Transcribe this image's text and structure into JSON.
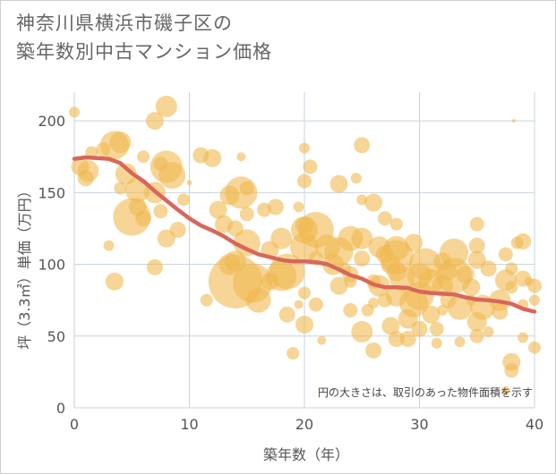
{
  "title_lines": [
    "神奈川県横浜市磯子区の",
    "築年数別中古マンション価格"
  ],
  "note": "円の大きさは、取引のあった物件面積を示す",
  "colors": {
    "bubble": "#f0b950",
    "line": "#d9665a",
    "grid": "#c9d3df",
    "axis_text": "#555555"
  },
  "chart_data": {
    "type": "scatter",
    "title": "神奈川県横浜市磯子区の築年数別中古マンション価格",
    "xlabel": "築年数（年）",
    "ylabel": "坪（3.3㎡）単価（万円）",
    "xlim": [
      0,
      40
    ],
    "ylim": [
      0,
      220
    ],
    "x_ticks": [
      0,
      10,
      20,
      30,
      40
    ],
    "y_ticks": [
      0,
      50,
      100,
      150,
      200
    ],
    "grid": true,
    "series": [
      {
        "kind": "bubble",
        "points": [
          [
            0,
            206,
            6
          ],
          [
            0.5,
            168,
            10
          ],
          [
            1,
            160,
            9
          ],
          [
            1.2,
            165,
            12
          ],
          [
            1.5,
            178,
            7
          ],
          [
            2.5,
            180,
            8
          ],
          [
            3,
            113,
            6
          ],
          [
            3.5,
            183,
            16
          ],
          [
            4,
            185,
            12
          ],
          [
            3.5,
            88,
            10
          ],
          [
            4,
            153,
            7
          ],
          [
            4.5,
            163,
            12
          ],
          [
            5,
            133,
            21
          ],
          [
            5.5,
            152,
            14
          ],
          [
            5.5,
            140,
            10
          ],
          [
            6,
            132,
            9
          ],
          [
            6,
            175,
            7
          ],
          [
            7,
            150,
            12
          ],
          [
            7,
            98,
            9
          ],
          [
            7,
            200,
            10
          ],
          [
            7.5,
            170,
            8
          ],
          [
            7.5,
            137,
            8
          ],
          [
            8,
            210,
            12
          ],
          [
            8,
            168,
            18
          ],
          [
            8,
            118,
            10
          ],
          [
            8.5,
            162,
            15
          ],
          [
            9,
            124,
            9
          ],
          [
            9.5,
            145,
            7
          ],
          [
            10,
            157,
            3
          ],
          [
            11,
            176,
            9
          ],
          [
            11.5,
            75,
            7
          ],
          [
            12,
            174,
            10
          ],
          [
            12.5,
            138,
            10
          ],
          [
            13,
            128,
            10
          ],
          [
            13.5,
            100,
            12
          ],
          [
            13.5,
            148,
            11
          ],
          [
            14,
            125,
            9
          ],
          [
            14,
            102,
            12
          ],
          [
            14,
            88,
            30
          ],
          [
            14.5,
            175,
            5
          ],
          [
            14.5,
            150,
            18
          ],
          [
            15,
            153,
            8
          ],
          [
            15,
            135,
            8
          ],
          [
            15,
            115,
            15
          ],
          [
            15.5,
            87,
            22
          ],
          [
            16,
            75,
            14
          ],
          [
            16.5,
            138,
            8
          ],
          [
            17,
            110,
            10
          ],
          [
            17,
            88,
            10
          ],
          [
            17.5,
            140,
            9
          ],
          [
            18,
            118,
            12
          ],
          [
            18,
            92,
            17
          ],
          [
            18.5,
            95,
            20
          ],
          [
            18.5,
            65,
            9
          ],
          [
            19,
            38,
            7
          ],
          [
            19.5,
            72,
            5
          ],
          [
            19.5,
            140,
            6
          ],
          [
            20,
            181,
            6
          ],
          [
            20,
            158,
            8
          ],
          [
            20,
            127,
            10
          ],
          [
            20,
            124,
            15
          ],
          [
            20,
            112,
            16
          ],
          [
            20,
            80,
            7
          ],
          [
            20,
            58,
            10
          ],
          [
            20.5,
            168,
            8
          ],
          [
            21,
            124,
            20
          ],
          [
            21,
            104,
            8
          ],
          [
            21,
            72,
            8
          ],
          [
            21.5,
            47,
            5
          ],
          [
            22,
            112,
            14
          ],
          [
            22.5,
            100,
            12
          ],
          [
            23,
            156,
            10
          ],
          [
            23,
            109,
            16
          ],
          [
            23,
            85,
            10
          ],
          [
            23.5,
            97,
            7
          ],
          [
            24,
            118,
            14
          ],
          [
            24,
            93,
            9
          ],
          [
            24,
            88,
            7
          ],
          [
            24,
            68,
            8
          ],
          [
            24.5,
            160,
            6
          ],
          [
            25,
            183,
            9
          ],
          [
            25,
            145,
            6
          ],
          [
            25,
            118,
            12
          ],
          [
            25,
            104,
            9
          ],
          [
            25,
            53,
            12
          ],
          [
            25.5,
            68,
            7
          ],
          [
            26,
            143,
            10
          ],
          [
            26,
            88,
            8
          ],
          [
            26,
            73,
            6
          ],
          [
            26,
            40,
            9
          ],
          [
            26.5,
            112,
            12
          ],
          [
            26.5,
            85,
            12
          ],
          [
            27,
            132,
            8
          ],
          [
            27,
            107,
            10
          ],
          [
            27,
            75,
            8
          ],
          [
            27.5,
            100,
            11
          ],
          [
            27.5,
            57,
            10
          ],
          [
            28,
            128,
            7
          ],
          [
            28,
            111,
            14
          ],
          [
            28,
            105,
            19
          ],
          [
            28,
            95,
            11
          ],
          [
            28,
            78,
            12
          ],
          [
            28,
            48,
            9
          ],
          [
            28.5,
            90,
            14
          ],
          [
            29,
            62,
            11
          ],
          [
            29,
            48,
            9
          ],
          [
            29.5,
            115,
            10
          ],
          [
            29.5,
            73,
            16
          ],
          [
            30,
            92,
            14
          ],
          [
            30,
            78,
            16
          ],
          [
            30,
            55,
            9
          ],
          [
            30.5,
            100,
            18
          ],
          [
            31,
            88,
            14
          ],
          [
            31,
            65,
            10
          ],
          [
            31.5,
            55,
            8
          ],
          [
            31.5,
            45,
            6
          ],
          [
            32,
            102,
            10
          ],
          [
            32,
            85,
            12
          ],
          [
            32,
            68,
            6
          ],
          [
            32.5,
            95,
            10
          ],
          [
            32.5,
            75,
            9
          ],
          [
            33,
            108,
            16
          ],
          [
            33,
            92,
            20
          ],
          [
            33.5,
            70,
            14
          ],
          [
            33.5,
            46,
            6
          ],
          [
            34,
            93,
            10
          ],
          [
            34.5,
            84,
            10
          ],
          [
            34.5,
            75,
            6
          ],
          [
            35,
            128,
            8
          ],
          [
            35,
            113,
            9
          ],
          [
            35,
            103,
            10
          ],
          [
            35,
            60,
            11
          ],
          [
            35,
            50,
            8
          ],
          [
            35.5,
            70,
            14
          ],
          [
            36,
            97,
            9
          ],
          [
            36,
            53,
            6
          ],
          [
            37,
            75,
            12
          ],
          [
            37,
            67,
            9
          ],
          [
            37.5,
            107,
            8
          ],
          [
            37.5,
            89,
            12
          ],
          [
            37.5,
            12,
            5
          ],
          [
            38,
            97,
            7
          ],
          [
            38,
            84,
            7
          ],
          [
            38,
            32,
            10
          ],
          [
            38,
            26,
            8
          ],
          [
            38.2,
            200,
            2
          ],
          [
            38.5,
            115,
            7
          ],
          [
            39,
            116,
            9
          ],
          [
            39,
            90,
            9
          ],
          [
            39,
            72,
            6
          ],
          [
            39,
            49,
            6
          ],
          [
            39.5,
            88,
            5
          ],
          [
            40,
            85,
            8
          ],
          [
            40,
            75,
            6
          ],
          [
            40,
            42,
            7
          ]
        ]
      },
      {
        "kind": "line",
        "x": [
          0,
          1,
          2,
          3,
          4,
          5,
          6,
          7,
          8,
          9,
          10,
          11,
          12,
          13,
          14,
          15,
          16,
          17,
          18,
          19,
          20,
          21,
          22,
          23,
          24,
          25,
          26,
          27,
          28,
          29,
          30,
          31,
          32,
          33,
          34,
          35,
          36,
          37,
          38,
          39,
          40
        ],
        "y": [
          173.5,
          174.5,
          174,
          173.5,
          170.5,
          163.5,
          158,
          151,
          144.5,
          138,
          132,
          127,
          123.5,
          119.5,
          114.5,
          110.5,
          107,
          105,
          103,
          102,
          102,
          101.5,
          100,
          96.5,
          92.5,
          90,
          86,
          84,
          84,
          83.5,
          81,
          80,
          79.5,
          79,
          77,
          75.5,
          75,
          74,
          72.5,
          69,
          67
        ]
      }
    ]
  }
}
